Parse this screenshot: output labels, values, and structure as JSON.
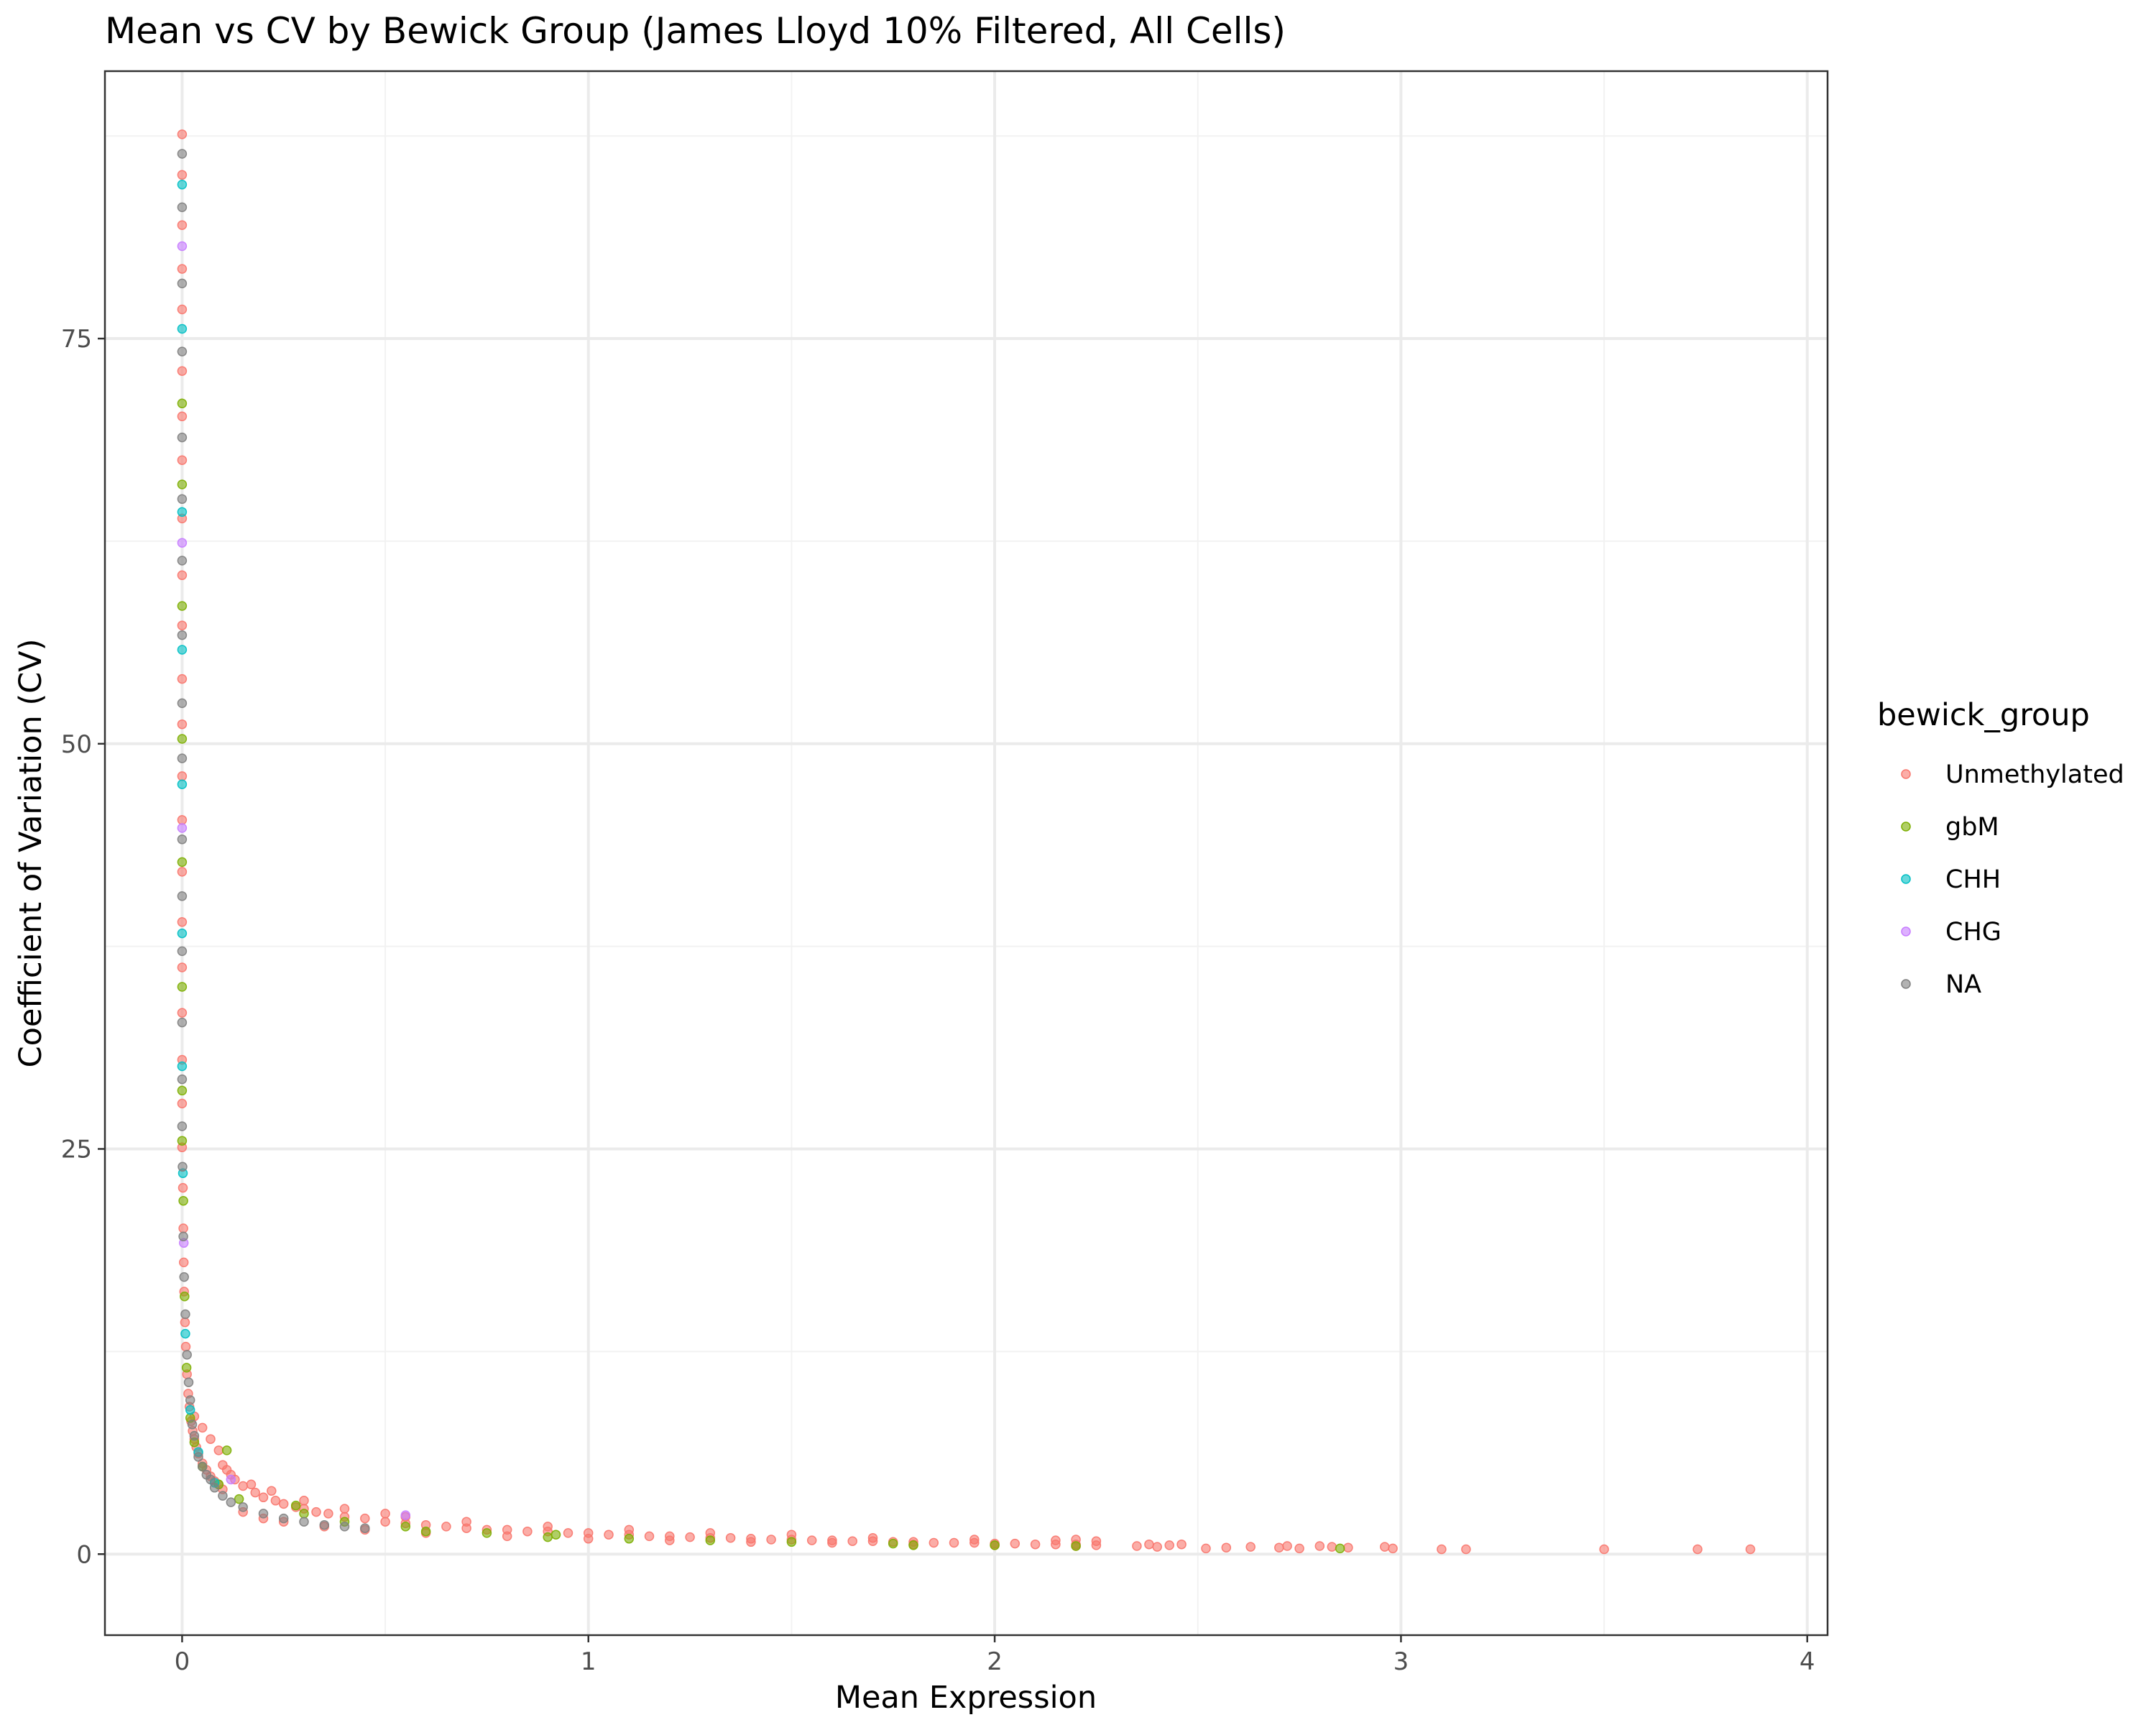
{
  "chart_data": {
    "type": "scatter",
    "title": "Mean vs CV by Bewick Group (James Lloyd 10% Filtered, All Cells)",
    "xlabel": "Mean Expression",
    "ylabel": "Coefficient of Variation (CV)",
    "xlim": [
      -0.19,
      4.05
    ],
    "ylim": [
      -5.0,
      91.5
    ],
    "x_ticks": [
      0,
      1,
      2,
      3,
      4
    ],
    "x_tick_labels": [
      "0",
      "1",
      "2",
      "3",
      "4"
    ],
    "y_ticks": [
      0,
      25,
      50,
      75
    ],
    "y_tick_labels": [
      "0",
      "25",
      "50",
      "75"
    ],
    "x_minor": [
      0.5,
      1.5,
      2.5,
      3.5
    ],
    "y_minor": [
      12.5,
      37.5,
      62.5,
      87.5
    ],
    "grid": true,
    "legend": {
      "title": "bewick_group",
      "position": "right",
      "entries": [
        {
          "name": "Unmethylated",
          "color": "#F8766D"
        },
        {
          "name": "gbM",
          "color": "#7CAE00"
        },
        {
          "name": "CHH",
          "color": "#00BFC4"
        },
        {
          "name": "CHG",
          "color": "#C77CFF"
        },
        {
          "name": "NA",
          "color": "#7F7F7F"
        }
      ]
    },
    "point_alpha": 0.6,
    "series": [
      {
        "name": "Unmethylated",
        "color": "#F8766D",
        "points": [
          [
            0.0,
            87.6
          ],
          [
            0.0,
            85.1
          ],
          [
            0.0,
            82.0
          ],
          [
            0.0,
            79.3
          ],
          [
            0.0,
            76.8
          ],
          [
            0.0,
            73.0
          ],
          [
            0.0,
            70.2
          ],
          [
            0.0,
            67.5
          ],
          [
            0.0,
            63.9
          ],
          [
            0.0,
            60.4
          ],
          [
            0.0,
            57.3
          ],
          [
            0.0,
            54.0
          ],
          [
            0.0,
            51.2
          ],
          [
            0.0,
            48.0
          ],
          [
            0.0,
            45.3
          ],
          [
            0.0,
            42.1
          ],
          [
            0.0,
            39.0
          ],
          [
            0.0,
            36.2
          ],
          [
            0.0,
            33.4
          ],
          [
            0.0,
            30.5
          ],
          [
            0.0,
            27.8
          ],
          [
            0.0,
            25.1
          ],
          [
            0.002,
            22.6
          ],
          [
            0.003,
            20.1
          ],
          [
            0.004,
            18.0
          ],
          [
            0.005,
            16.2
          ],
          [
            0.007,
            14.3
          ],
          [
            0.009,
            12.8
          ],
          [
            0.012,
            11.1
          ],
          [
            0.015,
            9.9
          ],
          [
            0.018,
            9.1
          ],
          [
            0.022,
            8.2
          ],
          [
            0.026,
            7.6
          ],
          [
            0.03,
            7.1
          ],
          [
            0.035,
            6.6
          ],
          [
            0.04,
            6.2
          ],
          [
            0.05,
            5.6
          ],
          [
            0.06,
            5.2
          ],
          [
            0.07,
            4.8
          ],
          [
            0.08,
            4.5
          ],
          [
            0.09,
            4.3
          ],
          [
            0.1,
            4.0
          ],
          [
            0.03,
            8.5
          ],
          [
            0.05,
            7.8
          ],
          [
            0.07,
            7.1
          ],
          [
            0.09,
            6.4
          ],
          [
            0.11,
            5.2
          ],
          [
            0.13,
            4.6
          ],
          [
            0.15,
            4.2
          ],
          [
            0.18,
            3.8
          ],
          [
            0.2,
            3.5
          ],
          [
            0.23,
            3.3
          ],
          [
            0.25,
            3.1
          ],
          [
            0.28,
            2.9
          ],
          [
            0.3,
            2.8
          ],
          [
            0.33,
            2.6
          ],
          [
            0.36,
            2.5
          ],
          [
            0.4,
            2.3
          ],
          [
            0.45,
            2.2
          ],
          [
            0.5,
            2.0
          ],
          [
            0.55,
            1.9
          ],
          [
            0.6,
            1.8
          ],
          [
            0.65,
            1.7
          ],
          [
            0.7,
            1.6
          ],
          [
            0.75,
            1.5
          ],
          [
            0.8,
            1.5
          ],
          [
            0.85,
            1.4
          ],
          [
            0.9,
            1.4
          ],
          [
            0.95,
            1.3
          ],
          [
            1.0,
            1.3
          ],
          [
            1.05,
            1.2
          ],
          [
            1.1,
            1.2
          ],
          [
            1.15,
            1.1
          ],
          [
            1.2,
            1.1
          ],
          [
            1.25,
            1.05
          ],
          [
            1.3,
            1.0
          ],
          [
            1.35,
            1.0
          ],
          [
            1.4,
            0.95
          ],
          [
            1.45,
            0.9
          ],
          [
            1.5,
            0.9
          ],
          [
            1.55,
            0.85
          ],
          [
            1.6,
            0.85
          ],
          [
            1.65,
            0.8
          ],
          [
            1.7,
            0.8
          ],
          [
            1.75,
            0.75
          ],
          [
            1.8,
            0.75
          ],
          [
            1.85,
            0.7
          ],
          [
            1.9,
            0.7
          ],
          [
            1.95,
            0.7
          ],
          [
            2.0,
            0.65
          ],
          [
            2.05,
            0.65
          ],
          [
            2.1,
            0.6
          ],
          [
            2.15,
            0.6
          ],
          [
            2.2,
            0.6
          ],
          [
            2.25,
            0.55
          ],
          [
            0.15,
            2.6
          ],
          [
            0.2,
            2.2
          ],
          [
            0.25,
            2.0
          ],
          [
            0.35,
            1.7
          ],
          [
            0.45,
            1.5
          ],
          [
            0.6,
            1.3
          ],
          [
            0.8,
            1.1
          ],
          [
            1.0,
            0.95
          ],
          [
            1.2,
            0.85
          ],
          [
            1.4,
            0.75
          ],
          [
            1.6,
            0.7
          ],
          [
            1.8,
            0.6
          ],
          [
            2.0,
            0.55
          ],
          [
            2.2,
            0.5
          ],
          [
            0.1,
            5.5
          ],
          [
            0.12,
            4.9
          ],
          [
            0.17,
            4.3
          ],
          [
            0.22,
            3.9
          ],
          [
            0.3,
            3.3
          ],
          [
            0.4,
            2.8
          ],
          [
            0.5,
            2.5
          ],
          [
            0.55,
            2.3
          ],
          [
            0.7,
            2.0
          ],
          [
            0.9,
            1.7
          ],
          [
            1.1,
            1.5
          ],
          [
            1.3,
            1.3
          ],
          [
            1.5,
            1.2
          ],
          [
            1.7,
            1.0
          ],
          [
            1.95,
            0.9
          ],
          [
            2.15,
            0.85
          ],
          [
            2.2,
            0.9
          ],
          [
            2.25,
            0.8
          ],
          [
            2.35,
            0.5
          ],
          [
            2.38,
            0.6
          ],
          [
            2.4,
            0.45
          ],
          [
            2.43,
            0.55
          ],
          [
            2.46,
            0.6
          ],
          [
            2.52,
            0.35
          ],
          [
            2.57,
            0.4
          ],
          [
            2.63,
            0.45
          ],
          [
            2.7,
            0.4
          ],
          [
            2.72,
            0.5
          ],
          [
            2.75,
            0.35
          ],
          [
            2.8,
            0.5
          ],
          [
            2.83,
            0.45
          ],
          [
            2.87,
            0.4
          ],
          [
            2.96,
            0.45
          ],
          [
            2.98,
            0.35
          ],
          [
            3.1,
            0.3
          ],
          [
            3.16,
            0.3
          ],
          [
            3.5,
            0.3
          ],
          [
            3.73,
            0.3
          ],
          [
            3.86,
            0.3
          ]
        ]
      },
      {
        "name": "gbM",
        "color": "#7CAE00",
        "points": [
          [
            0.0,
            71.0
          ],
          [
            0.0,
            66.0
          ],
          [
            0.0,
            58.5
          ],
          [
            0.0,
            50.3
          ],
          [
            0.0,
            42.7
          ],
          [
            0.0,
            35.0
          ],
          [
            0.0,
            28.6
          ],
          [
            0.0,
            25.5
          ],
          [
            0.003,
            21.8
          ],
          [
            0.006,
            15.9
          ],
          [
            0.011,
            11.5
          ],
          [
            0.02,
            8.4
          ],
          [
            0.03,
            6.9
          ],
          [
            0.05,
            5.4
          ],
          [
            0.11,
            6.4
          ],
          [
            0.09,
            4.3
          ],
          [
            0.14,
            3.4
          ],
          [
            0.28,
            3.0
          ],
          [
            0.3,
            2.5
          ],
          [
            0.4,
            2.0
          ],
          [
            0.55,
            1.7
          ],
          [
            0.6,
            1.4
          ],
          [
            0.75,
            1.3
          ],
          [
            0.9,
            1.05
          ],
          [
            0.92,
            1.2
          ],
          [
            1.1,
            0.95
          ],
          [
            1.3,
            0.85
          ],
          [
            1.5,
            0.75
          ],
          [
            1.75,
            0.65
          ],
          [
            1.8,
            0.55
          ],
          [
            2.0,
            0.55
          ],
          [
            2.2,
            0.5
          ],
          [
            2.85,
            0.35
          ]
        ]
      },
      {
        "name": "CHH",
        "color": "#00BFC4",
        "points": [
          [
            0.0,
            84.5
          ],
          [
            0.0,
            75.6
          ],
          [
            0.0,
            64.3
          ],
          [
            0.0,
            55.8
          ],
          [
            0.0,
            47.5
          ],
          [
            0.0,
            38.3
          ],
          [
            0.0,
            30.1
          ],
          [
            0.002,
            23.5
          ],
          [
            0.008,
            13.6
          ],
          [
            0.02,
            8.9
          ],
          [
            0.04,
            6.3
          ],
          [
            0.08,
            4.4
          ]
        ]
      },
      {
        "name": "CHG",
        "color": "#C77CFF",
        "points": [
          [
            0.0,
            80.7
          ],
          [
            0.0,
            62.4
          ],
          [
            0.0,
            44.8
          ],
          [
            0.004,
            19.2
          ],
          [
            0.12,
            4.6
          ],
          [
            0.55,
            2.4
          ]
        ]
      },
      {
        "name": "NA",
        "color": "#7F7F7F",
        "points": [
          [
            0.0,
            86.4
          ],
          [
            0.0,
            83.1
          ],
          [
            0.0,
            78.4
          ],
          [
            0.0,
            74.2
          ],
          [
            0.0,
            68.9
          ],
          [
            0.0,
            65.1
          ],
          [
            0.0,
            61.3
          ],
          [
            0.0,
            56.7
          ],
          [
            0.0,
            52.5
          ],
          [
            0.0,
            49.1
          ],
          [
            0.0,
            44.1
          ],
          [
            0.0,
            40.6
          ],
          [
            0.0,
            37.2
          ],
          [
            0.0,
            32.8
          ],
          [
            0.0,
            29.3
          ],
          [
            0.0,
            26.4
          ],
          [
            0.001,
            23.9
          ],
          [
            0.003,
            19.6
          ],
          [
            0.005,
            17.1
          ],
          [
            0.008,
            14.8
          ],
          [
            0.012,
            12.3
          ],
          [
            0.016,
            10.6
          ],
          [
            0.02,
            9.5
          ],
          [
            0.025,
            8.0
          ],
          [
            0.03,
            7.3
          ],
          [
            0.04,
            6.0
          ],
          [
            0.05,
            5.4
          ],
          [
            0.06,
            4.9
          ],
          [
            0.07,
            4.6
          ],
          [
            0.08,
            4.1
          ],
          [
            0.1,
            3.6
          ],
          [
            0.12,
            3.2
          ],
          [
            0.15,
            2.9
          ],
          [
            0.2,
            2.5
          ],
          [
            0.25,
            2.2
          ],
          [
            0.3,
            2.0
          ],
          [
            0.35,
            1.8
          ],
          [
            0.4,
            1.7
          ],
          [
            0.45,
            1.6
          ]
        ]
      }
    ]
  }
}
